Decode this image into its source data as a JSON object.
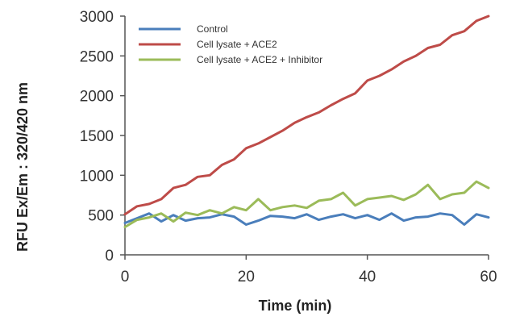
{
  "chart_data": {
    "type": "line",
    "title": "",
    "xlabel": "Time (min)",
    "ylabel": "RFU  Ex/Em : 320/420 nm",
    "xlim": [
      0,
      60
    ],
    "ylim": [
      0,
      3000
    ],
    "xticks": [
      0,
      20,
      40,
      60
    ],
    "yticks": [
      0,
      500,
      1000,
      1500,
      2000,
      2500,
      3000
    ],
    "grid": false,
    "legend_position": "top-left",
    "series": [
      {
        "name": "Control",
        "color": "#4a7ebb",
        "x": [
          0,
          2,
          4,
          6,
          8,
          10,
          12,
          14,
          16,
          18,
          20,
          22,
          24,
          26,
          28,
          30,
          32,
          34,
          36,
          38,
          40,
          42,
          44,
          46,
          48,
          50,
          52,
          54,
          56,
          58,
          60
        ],
        "y": [
          400,
          460,
          520,
          420,
          500,
          430,
          460,
          470,
          510,
          480,
          380,
          430,
          490,
          480,
          460,
          510,
          440,
          480,
          510,
          460,
          500,
          440,
          520,
          430,
          470,
          480,
          520,
          500,
          380,
          510,
          470
        ]
      },
      {
        "name": "Cell lysate + ACE2",
        "color": "#be4b48",
        "x": [
          0,
          2,
          4,
          6,
          8,
          10,
          12,
          14,
          16,
          18,
          20,
          22,
          24,
          26,
          28,
          30,
          32,
          34,
          36,
          38,
          40,
          42,
          44,
          46,
          48,
          50,
          52,
          54,
          56,
          58,
          60
        ],
        "y": [
          510,
          610,
          640,
          700,
          840,
          880,
          980,
          1000,
          1130,
          1200,
          1340,
          1400,
          1480,
          1560,
          1660,
          1730,
          1790,
          1880,
          1960,
          2030,
          2190,
          2250,
          2330,
          2430,
          2500,
          2600,
          2640,
          2760,
          2810,
          2940,
          3000
        ]
      },
      {
        "name": "Cell lysate + ACE2 + Inhibitor",
        "color": "#9bbb59",
        "x": [
          0,
          2,
          4,
          6,
          8,
          10,
          12,
          14,
          16,
          18,
          20,
          22,
          24,
          26,
          28,
          30,
          32,
          34,
          36,
          38,
          40,
          42,
          44,
          46,
          48,
          50,
          52,
          54,
          56,
          58,
          60
        ],
        "y": [
          350,
          440,
          470,
          520,
          420,
          530,
          500,
          560,
          520,
          600,
          560,
          700,
          560,
          600,
          620,
          590,
          680,
          700,
          780,
          620,
          700,
          720,
          740,
          690,
          760,
          880,
          700,
          760,
          780,
          920,
          840
        ]
      }
    ]
  }
}
